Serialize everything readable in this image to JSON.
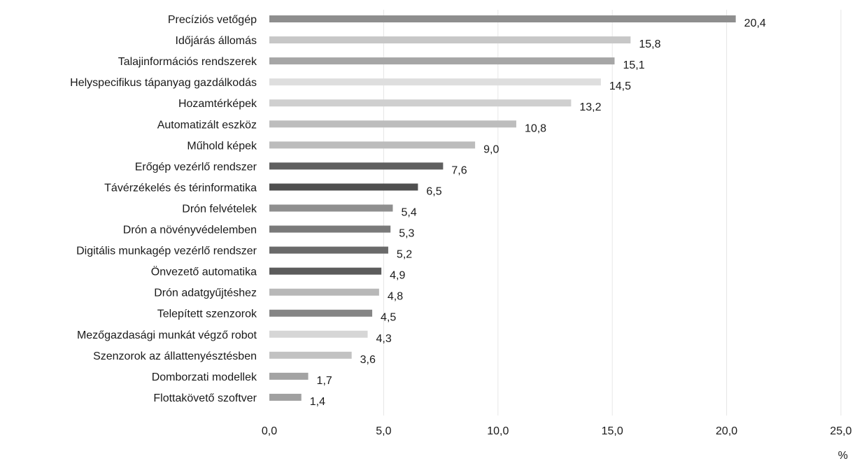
{
  "chart_data": {
    "type": "bar",
    "orientation": "horizontal",
    "categories": [
      "Precíziós vetőgép",
      "Időjárás állomás",
      "Talajinformációs rendszerek",
      "Helyspecifikus tápanyag gazdálkodás",
      "Hozamtérképek",
      "Automatizált eszköz",
      "Műhold képek",
      "Erőgép vezérlő rendszer",
      "Távérzékelés és térinformatika",
      "Drón felvételek",
      "Drón a növényvédelemben",
      "Digitális munkagép vezérlő rendszer",
      "Önvezető automatika",
      "Drón adatgyűjtéshez",
      "Telepített szenzorok",
      "Mezőgazdasági munkát végző robot",
      "Szenzorok az állattenyésztésben",
      "Domborzati modellek",
      "Flottakövető szoftver"
    ],
    "values": [
      20.4,
      15.8,
      15.1,
      14.5,
      13.2,
      10.8,
      9.0,
      7.6,
      6.5,
      5.4,
      5.3,
      5.2,
      4.9,
      4.8,
      4.5,
      4.3,
      3.6,
      1.7,
      1.4
    ],
    "value_labels": [
      "20,4",
      "15,8",
      "15,1",
      "14,5",
      "13,2",
      "10,8",
      "9,0",
      "7,6",
      "6,5",
      "5,4",
      "5,3",
      "5,2",
      "4,9",
      "4,8",
      "4,5",
      "4,3",
      "3,6",
      "1,7",
      "1,4"
    ],
    "bar_colors": [
      "#8e8e8e",
      "#c7c7c7",
      "#a6a6a6",
      "#dedede",
      "#cfcfcf",
      "#bdbdbd",
      "#bcbcbc",
      "#5f5f5f",
      "#4f4f4f",
      "#8f8f8f",
      "#7a7a7a",
      "#6a6a6a",
      "#5c5c5c",
      "#b8b8b8",
      "#858585",
      "#d6d6d6",
      "#c2c2c2",
      "#a3a3a3",
      "#a0a0a0"
    ],
    "x_ticks": [
      0,
      5,
      10,
      15,
      20,
      25
    ],
    "x_tick_labels": [
      "0,0",
      "5,0",
      "10,0",
      "15,0",
      "20,0",
      "25,0"
    ],
    "xlim": [
      0,
      25
    ],
    "unit_label": "%",
    "title": "",
    "xlabel": "",
    "ylabel": "",
    "grid": "vertical",
    "legend": "none"
  }
}
